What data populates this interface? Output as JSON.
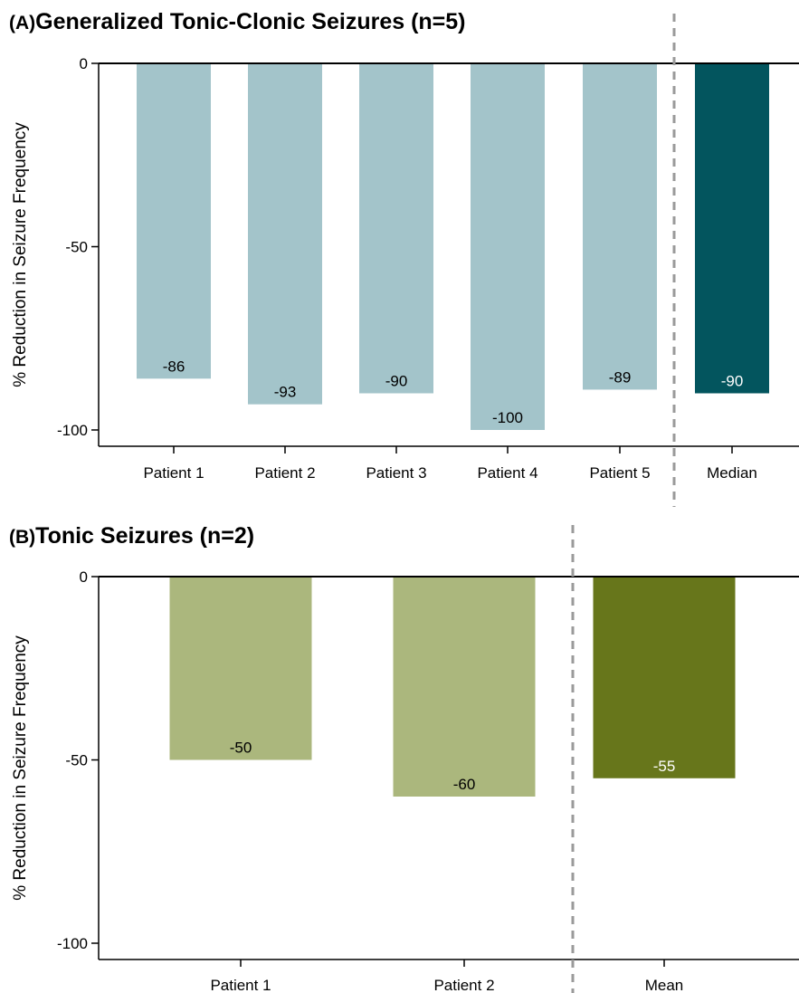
{
  "chart_data": [
    {
      "type": "bar",
      "panel_label": "(A)",
      "title": "Generalized Tonic-Clonic Seizures (n=5)",
      "ylabel": "% Reduction in Seizure Frequency",
      "ylim": [
        -105,
        0
      ],
      "yticks": [
        0,
        -50,
        -100
      ],
      "categories": [
        "Patient 1",
        "Patient 2",
        "Patient 3",
        "Patient 4",
        "Patient 5",
        "Median"
      ],
      "values": [
        -86,
        -93,
        -90,
        -100,
        -89,
        -90
      ],
      "value_labels": [
        "-86",
        "-93",
        "-90",
        "-100",
        "-89",
        "-90"
      ],
      "colors": [
        "#a3c4ca",
        "#a3c4ca",
        "#a3c4ca",
        "#a3c4ca",
        "#a3c4ca",
        "#03555e"
      ],
      "label_colors": [
        "#000000",
        "#000000",
        "#000000",
        "#000000",
        "#000000",
        "#ffffff"
      ],
      "separator_after_index": 4,
      "grid": false,
      "legend": "none"
    },
    {
      "type": "bar",
      "panel_label": "(B)",
      "title": "Tonic Seizures (n=2)",
      "ylabel": "% Reduction in Seizure Frequency",
      "ylim": [
        -105,
        0
      ],
      "yticks": [
        0,
        -50,
        -100
      ],
      "categories": [
        "Patient 1",
        "Patient 2",
        "Mean"
      ],
      "values": [
        -50,
        -60,
        -55
      ],
      "value_labels": [
        "-50",
        "-60",
        "-55"
      ],
      "colors": [
        "#abb77d",
        "#abb77d",
        "#67761b"
      ],
      "label_colors": [
        "#000000",
        "#000000",
        "#ffffff"
      ],
      "separator_after_index": 1,
      "grid": false,
      "legend": "none"
    }
  ]
}
